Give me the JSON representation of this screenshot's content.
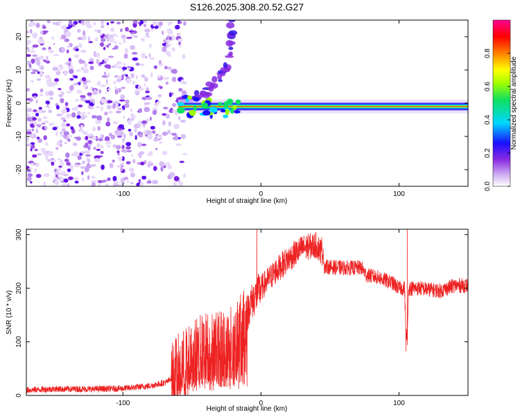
{
  "title": "S126.2025.308.20.52.G27",
  "colors": {
    "snr_line": "#ee2222",
    "background": "#ffffff",
    "axis": "#000000"
  },
  "chart_data": [
    {
      "type": "heatmap",
      "name": "spectrogram",
      "xlabel": "Height of straight line (km)",
      "ylabel": "Frequency (Hz)",
      "xlim": [
        -170,
        150
      ],
      "ylim": [
        -25,
        25
      ],
      "x_ticks": [
        -100,
        0,
        100
      ],
      "x_tick_labels": [
        "-100",
        "0",
        "100"
      ],
      "y_ticks": [
        -20,
        -10,
        0,
        10,
        20
      ],
      "y_tick_labels": [
        "-20",
        "-10",
        "0",
        "10",
        "20"
      ],
      "colorbar": {
        "label": "Normalized spectral amplitude",
        "range": [
          0,
          1
        ],
        "ticks": [
          0.0,
          0.2,
          0.4,
          0.6,
          0.8
        ],
        "tick_labels": [
          "0.0",
          "0.2",
          "0.4",
          "0.6",
          "0.8"
        ]
      },
      "features": {
        "carrier_band_frequency_hz": -1,
        "carrier_band_start_km": -60,
        "carrier_band_end_km": 150,
        "rising_branch": [
          [
            -60,
            0
          ],
          [
            -40,
            3
          ],
          [
            -25,
            10
          ],
          [
            -20,
            25
          ]
        ],
        "noise_region_km": [
          -170,
          -60
        ]
      }
    },
    {
      "type": "line",
      "name": "snr",
      "xlabel": "Height of straight line (km)",
      "ylabel": "SNR (10 * v/v)",
      "xlim": [
        -170,
        150
      ],
      "ylim": [
        0,
        310
      ],
      "x_ticks": [
        -100,
        0,
        100
      ],
      "x_tick_labels": [
        "-100",
        "0",
        "100"
      ],
      "y_ticks": [
        0,
        100,
        200,
        300
      ],
      "y_tick_labels": [
        "0",
        "100",
        "200",
        "300"
      ],
      "envelope": [
        [
          -170,
          10
        ],
        [
          -150,
          12
        ],
        [
          -120,
          12
        ],
        [
          -100,
          13
        ],
        [
          -80,
          18
        ],
        [
          -68,
          25
        ],
        [
          -60,
          45
        ],
        [
          -50,
          70
        ],
        [
          -40,
          90
        ],
        [
          -30,
          90
        ],
        [
          -20,
          100
        ],
        [
          -12,
          130
        ],
        [
          -8,
          170
        ],
        [
          0,
          200
        ],
        [
          10,
          230
        ],
        [
          20,
          255
        ],
        [
          30,
          275
        ],
        [
          40,
          280
        ],
        [
          45,
          265
        ],
        [
          46,
          240
        ],
        [
          60,
          238
        ],
        [
          73,
          238
        ],
        [
          76,
          225
        ],
        [
          85,
          220
        ],
        [
          95,
          210
        ],
        [
          100,
          200
        ],
        [
          104,
          200
        ],
        [
          105,
          120
        ],
        [
          106,
          100
        ],
        [
          107,
          200
        ],
        [
          115,
          200
        ],
        [
          130,
          195
        ],
        [
          140,
          205
        ],
        [
          150,
          205
        ]
      ],
      "spikes": [
        [
          -3,
          310
        ],
        [
          44,
          295
        ],
        [
          106,
          310
        ],
        [
          105,
          82
        ]
      ]
    }
  ]
}
